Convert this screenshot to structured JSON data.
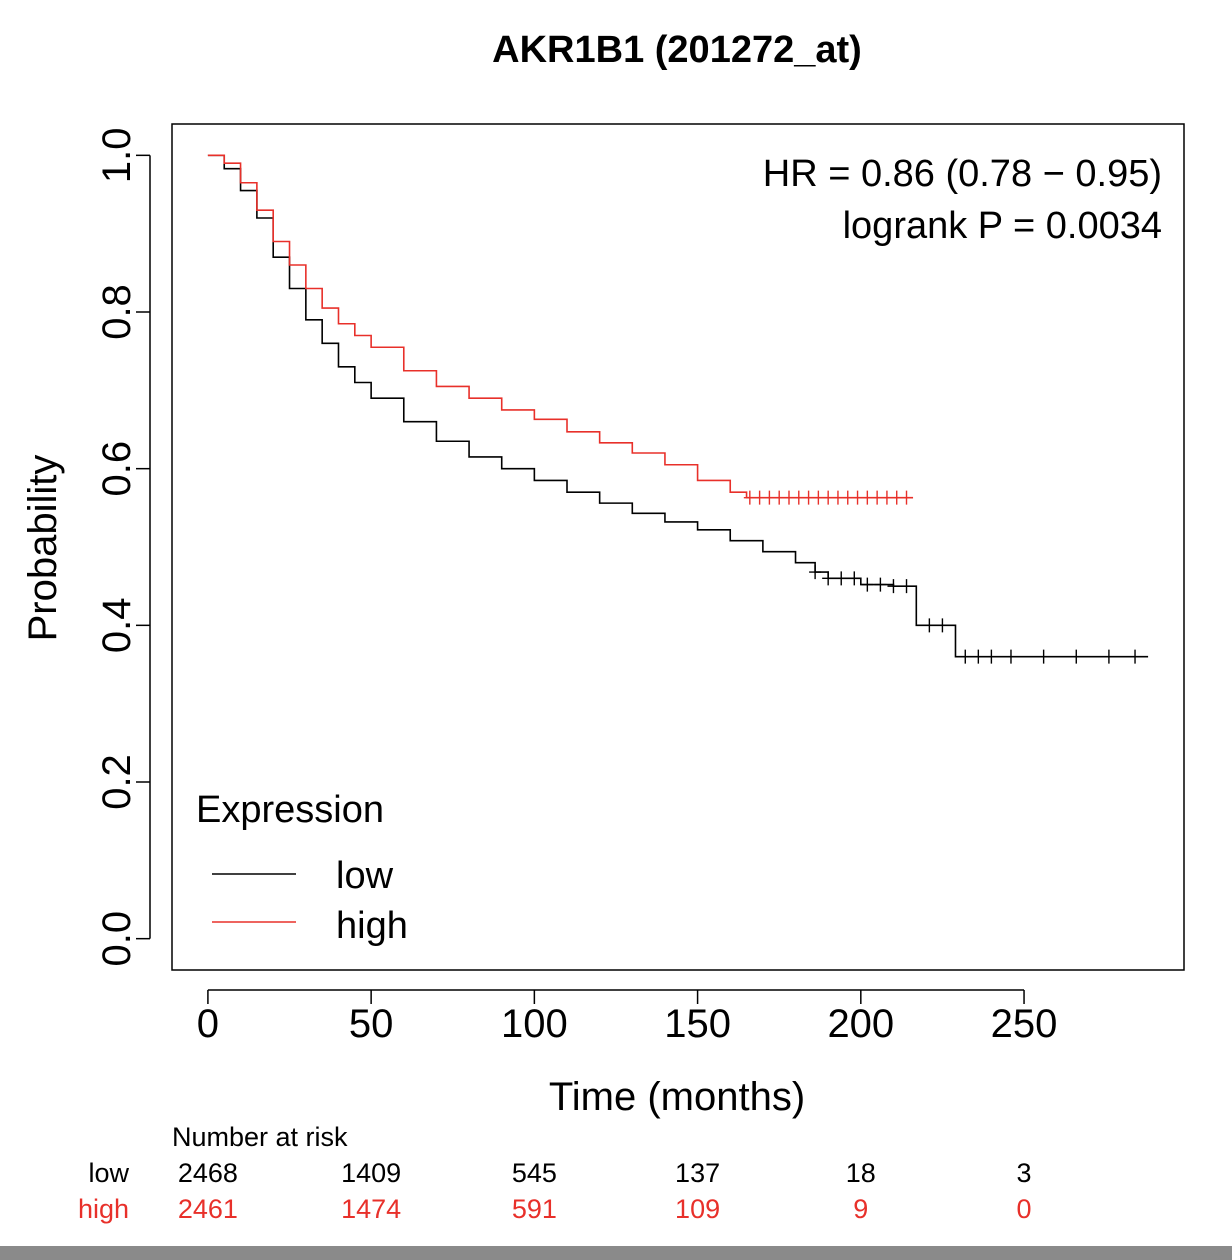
{
  "chart_data": {
    "type": "line",
    "title": "AKR1B1 (201272_at)",
    "xlabel": "Time (months)",
    "ylabel": "Probability",
    "xlim": [
      -11,
      299
    ],
    "ylim": [
      -0.04,
      1.04
    ],
    "x_ticks": [
      0,
      50,
      100,
      150,
      200,
      250
    ],
    "y_ticks": [
      0.0,
      0.2,
      0.4,
      0.6,
      0.8,
      1.0
    ],
    "y_tick_labels": [
      "0.0",
      "0.2",
      "0.4",
      "0.6",
      "0.8",
      "1.0"
    ],
    "annotation": {
      "hr": "HR = 0.86 (0.78 − 0.95)",
      "logrank": "logrank P = 0.0034"
    },
    "legend": {
      "title": "Expression",
      "position": "bottom-left",
      "entries": [
        {
          "label": "low",
          "color": "#000000"
        },
        {
          "label": "high",
          "color": "#e8302a"
        }
      ]
    },
    "series": [
      {
        "name": "low",
        "color": "#000000",
        "x": [
          0,
          5,
          10,
          15,
          20,
          25,
          30,
          35,
          40,
          45,
          50,
          60,
          70,
          80,
          90,
          100,
          110,
          120,
          130,
          140,
          150,
          160,
          170,
          180,
          186,
          190,
          200,
          210,
          216,
          217,
          228,
          229,
          250,
          288
        ],
        "y": [
          1.0,
          0.983,
          0.955,
          0.92,
          0.87,
          0.83,
          0.79,
          0.76,
          0.73,
          0.71,
          0.69,
          0.66,
          0.635,
          0.615,
          0.6,
          0.585,
          0.57,
          0.556,
          0.543,
          0.532,
          0.522,
          0.508,
          0.494,
          0.48,
          0.468,
          0.46,
          0.452,
          0.45,
          0.45,
          0.4,
          0.4,
          0.36,
          0.36,
          0.36
        ],
        "censor_x": [
          186,
          190,
          194,
          198,
          202,
          206,
          210,
          214,
          221,
          225,
          232,
          236,
          240,
          246,
          256,
          266,
          276,
          284
        ]
      },
      {
        "name": "high",
        "color": "#e8302a",
        "x": [
          0,
          5,
          10,
          15,
          20,
          25,
          30,
          35,
          40,
          45,
          50,
          60,
          70,
          80,
          90,
          100,
          110,
          120,
          130,
          140,
          150,
          160,
          165,
          170,
          180,
          190,
          200,
          210,
          216
        ],
        "y": [
          1.0,
          0.99,
          0.965,
          0.93,
          0.89,
          0.86,
          0.83,
          0.805,
          0.785,
          0.77,
          0.755,
          0.725,
          0.705,
          0.69,
          0.675,
          0.663,
          0.647,
          0.633,
          0.62,
          0.605,
          0.585,
          0.57,
          0.563,
          0.563,
          0.563,
          0.563,
          0.563,
          0.563,
          0.563
        ],
        "censor_x": [
          166,
          169,
          172,
          175,
          178,
          181,
          184,
          187,
          190,
          193,
          196,
          199,
          202,
          205,
          208,
          211,
          214
        ]
      }
    ],
    "risk_table": {
      "title": "Number at risk",
      "times": [
        0,
        50,
        100,
        150,
        200,
        250
      ],
      "rows": [
        {
          "label": "low",
          "color": "#000000",
          "values": [
            "2468",
            "1409",
            "545",
            "137",
            "18",
            "3"
          ]
        },
        {
          "label": "high",
          "color": "#e8302a",
          "values": [
            "2461",
            "1474",
            "591",
            "109",
            "9",
            "0"
          ]
        }
      ]
    }
  }
}
